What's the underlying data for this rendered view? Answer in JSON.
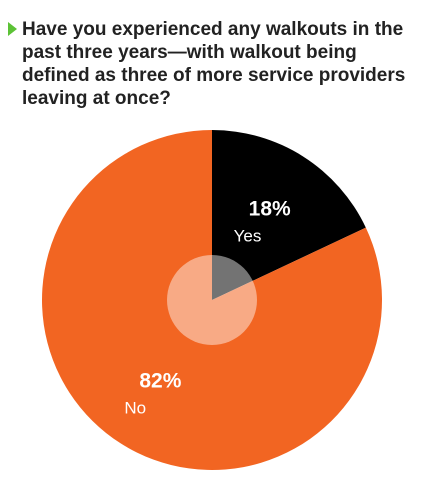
{
  "chart_data": {
    "type": "pie",
    "title": "Have you experienced any walkouts in the past three years—with walkout being defined as three of more service providers leaving at once?",
    "categories": [
      "Yes",
      "No"
    ],
    "values": [
      18,
      82
    ],
    "value_labels": [
      "18%",
      "82%"
    ],
    "colors": [
      "#000000",
      "#f26522"
    ]
  }
}
